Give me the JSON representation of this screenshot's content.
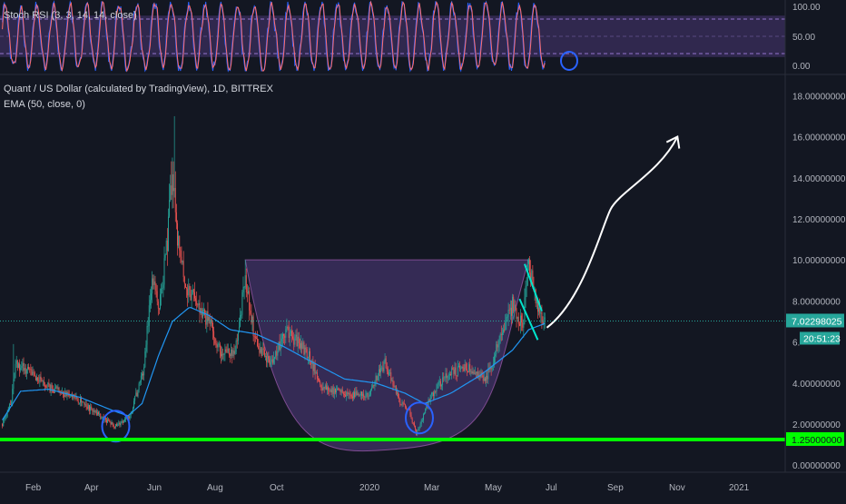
{
  "header": {
    "stoch_label": "Stoch RSI (3, 3, 14, 14, close)",
    "title": "Quant / US Dollar (calculated by TradingView), 1D, BITTREX",
    "ema_label": "EMA (50, close, 0)"
  },
  "stoch_axis": {
    "ticks": [
      "100.00",
      "50.00",
      "0.00"
    ]
  },
  "price_axis": {
    "ticks": [
      "18.00000000",
      "16.00000000",
      "14.00000000",
      "12.00000000",
      "10.00000000",
      "8.00000000",
      "6.",
      "4.00000000",
      "2.00000000",
      "0.00000000"
    ]
  },
  "time_axis": {
    "labels": [
      "Feb",
      "Apr",
      "Jun",
      "Aug",
      "Oct",
      "2020",
      "Mar",
      "May",
      "Jul",
      "Sep",
      "Nov",
      "2021"
    ]
  },
  "badges": {
    "price": "7.02298025",
    "countdown": "20:51:23",
    "support": "1.25000000"
  },
  "colors": {
    "background": "#131722",
    "up": "#26a69a",
    "down": "#ef5350",
    "ema": "#2196f3",
    "support": "#00ff00",
    "stoch_k": "#2962ff",
    "stoch_d": "#ff6d6d",
    "stoch_band": "#7e57c2",
    "annotation": "#2962ff",
    "flag": "#00e5cc"
  },
  "chart_data": {
    "type": "candlestick",
    "symbol": "Quant / US Dollar",
    "interval": "1D",
    "exchange": "BITTREX",
    "price_range": [
      -0.3,
      18.9
    ],
    "last_price": 7.02298025,
    "support_level": 1.25,
    "ema_period": 50,
    "price_path": [
      [
        "2019-01-28",
        2.0
      ],
      [
        "2019-02-06",
        3.2
      ],
      [
        "2019-02-10",
        5.0
      ],
      [
        "2019-02-25",
        4.5
      ],
      [
        "2019-03-15",
        3.8
      ],
      [
        "2019-04-10",
        3.3
      ],
      [
        "2019-05-01",
        2.5
      ],
      [
        "2019-05-20",
        1.9
      ],
      [
        "2019-06-03",
        2.4
      ],
      [
        "2019-06-16",
        4.5
      ],
      [
        "2019-06-25",
        9.0
      ],
      [
        "2019-07-02",
        7.5
      ],
      [
        "2019-07-10",
        11.0
      ],
      [
        "2019-07-15",
        14.5
      ],
      [
        "2019-07-20",
        11.0
      ],
      [
        "2019-07-27",
        9.0
      ],
      [
        "2019-08-08",
        7.8
      ],
      [
        "2019-08-20",
        7.0
      ],
      [
        "2019-09-01",
        5.5
      ],
      [
        "2019-09-15",
        5.5
      ],
      [
        "2019-09-25",
        9.2
      ],
      [
        "2019-10-05",
        6.0
      ],
      [
        "2019-10-20",
        5.0
      ],
      [
        "2019-11-05",
        6.5
      ],
      [
        "2019-11-25",
        5.5
      ],
      [
        "2019-12-10",
        3.8
      ],
      [
        "2020-01-05",
        3.4
      ],
      [
        "2020-01-25",
        3.5
      ],
      [
        "2020-02-10",
        5.0
      ],
      [
        "2020-02-25",
        3.0
      ],
      [
        "2020-03-05",
        2.7
      ],
      [
        "2020-03-12",
        1.5
      ],
      [
        "2020-03-25",
        3.2
      ],
      [
        "2020-04-10",
        4.4
      ],
      [
        "2020-05-01",
        4.8
      ],
      [
        "2020-05-20",
        4.2
      ],
      [
        "2020-06-05",
        6.5
      ],
      [
        "2020-06-15",
        7.8
      ],
      [
        "2020-06-25",
        6.8
      ],
      [
        "2020-07-01",
        9.8
      ],
      [
        "2020-07-08",
        8.2
      ],
      [
        "2020-07-12",
        7.2
      ],
      [
        "2020-07-17",
        7.0
      ]
    ],
    "ema_path": [
      [
        "2019-01-28",
        2.2
      ],
      [
        "2019-02-15",
        3.6
      ],
      [
        "2019-03-15",
        3.7
      ],
      [
        "2019-04-15",
        3.3
      ],
      [
        "2019-05-15",
        2.7
      ],
      [
        "2019-06-01",
        2.4
      ],
      [
        "2019-06-15",
        3.0
      ],
      [
        "2019-07-01",
        5.3
      ],
      [
        "2019-07-15",
        7.0
      ],
      [
        "2019-08-01",
        7.7
      ],
      [
        "2019-08-20",
        7.3
      ],
      [
        "2019-09-10",
        6.6
      ],
      [
        "2019-10-05",
        6.4
      ],
      [
        "2019-11-01",
        5.8
      ],
      [
        "2019-12-01",
        5.0
      ],
      [
        "2020-01-01",
        4.2
      ],
      [
        "2020-02-01",
        4.0
      ],
      [
        "2020-03-01",
        3.5
      ],
      [
        "2020-03-20",
        3.0
      ],
      [
        "2020-04-15",
        3.5
      ],
      [
        "2020-05-15",
        4.4
      ],
      [
        "2020-06-15",
        5.6
      ],
      [
        "2020-07-01",
        6.6
      ],
      [
        "2020-07-17",
        6.9
      ]
    ],
    "drawings": {
      "cup_shape": {
        "rim_left": [
          "2019-09-25",
          10.0
        ],
        "rim_right": [
          "2020-07-01",
          10.0
        ],
        "bottom": [
          "2020-02-25",
          0.8
        ]
      },
      "flag_upper": [
        [
          "2020-06-27",
          9.8
        ],
        [
          "2020-07-14",
          7.5
        ]
      ],
      "flag_lower": [
        [
          "2020-06-22",
          8.1
        ],
        [
          "2020-07-10",
          6.1
        ]
      ],
      "projection_arrow": [
        [
          "2020-07-19",
          6.7
        ],
        [
          "2020-11-25",
          16.0
        ]
      ],
      "circles": [
        [
          "2019-05-20",
          1.9
        ],
        [
          "2020-03-15",
          2.3
        ]
      ]
    },
    "stoch_rsi": {
      "params": "3, 3, 14, 14, close",
      "range": [
        0,
        100
      ],
      "bands": [
        20,
        80
      ]
    }
  }
}
